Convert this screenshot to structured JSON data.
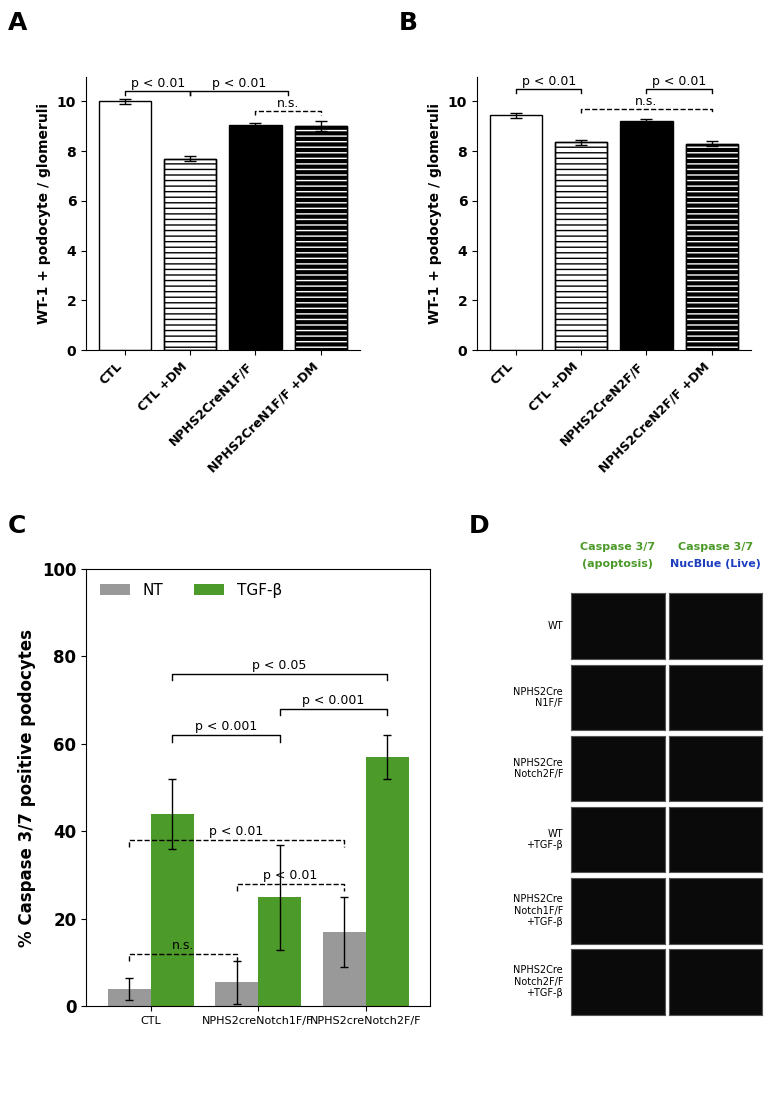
{
  "chart_data": [
    {
      "type": "bar",
      "title": "A",
      "categories": [
        "CTL",
        "CTL +DM",
        "NPHS2CreN1F/F",
        "NPHS2CreN1F/F +DM"
      ],
      "values": [
        10.0,
        7.7,
        9.05,
        9.0
      ],
      "errors": [
        0.1,
        0.1,
        0.1,
        0.2
      ],
      "colors": [
        "#ffffff",
        "#ffffff",
        "#000000",
        "#000000"
      ],
      "y_label": "WT-1 + podocyte / glomeruli",
      "ylim": [
        0,
        11
      ],
      "yticks": [
        0,
        2,
        4,
        6,
        8,
        10
      ],
      "annotations": [
        {
          "text": "p < 0.01",
          "from": 0,
          "to": 1,
          "y": 10.4,
          "line_style": "solid"
        },
        {
          "text": "p < 0.01",
          "from": 1,
          "to": 2.5,
          "y": 10.4,
          "line_style": "solid"
        },
        {
          "text": "n.s.",
          "from": 2,
          "to": 3,
          "y": 9.6,
          "line_style": "dashed"
        }
      ]
    },
    {
      "type": "bar",
      "title": "B",
      "categories": [
        "CTL",
        "CTL +DM",
        "NPHS2CreN2F/F",
        "NPHS2CreN2F/F +DM"
      ],
      "values": [
        9.45,
        8.35,
        9.2,
        8.3
      ],
      "errors": [
        0.1,
        0.1,
        0.1,
        0.1
      ],
      "colors": [
        "#ffffff",
        "#ffffff",
        "#000000",
        "#000000"
      ],
      "y_label": "WT-1 + podocyte / glomeruli",
      "ylim": [
        0,
        11
      ],
      "yticks": [
        0,
        2,
        4,
        6,
        8,
        10
      ],
      "annotations": [
        {
          "text": "p < 0.01",
          "from": 0,
          "to": 1,
          "y": 10.5,
          "line_style": "solid"
        },
        {
          "text": "p < 0.01",
          "from": 2,
          "to": 3,
          "y": 10.5,
          "line_style": "solid"
        },
        {
          "text": "n.s.",
          "from": 1,
          "to": 3,
          "y": 9.7,
          "line_style": "dashed"
        }
      ]
    },
    {
      "type": "grouped_bar",
      "title": "C",
      "categories": [
        "CTL",
        "NPHS2creNotch1F/F",
        "NPHS2creNotch2F/F"
      ],
      "series": [
        {
          "name": "NT",
          "color": "#999999",
          "values": [
            4,
            5.5,
            17
          ],
          "errors": [
            2.5,
            5,
            8
          ]
        },
        {
          "name": "TGF-β",
          "color": "#4c9a2a",
          "values": [
            44,
            25,
            57
          ],
          "errors": [
            8,
            12,
            5
          ]
        }
      ],
      "y_label": "% Caspase 3/7 positive podocytes",
      "ylim": [
        0,
        100
      ],
      "yticks": [
        0,
        20,
        40,
        60,
        80,
        100
      ],
      "legend": "upper left",
      "annotations": [
        {
          "text": "p < 0.05",
          "from": [
            0,
            1
          ],
          "to": [
            2,
            1
          ],
          "y": 76,
          "line_style": "solid"
        },
        {
          "text": "p < 0.001",
          "from": [
            0,
            1
          ],
          "to": [
            1,
            1
          ],
          "y": 62,
          "line_style": "solid"
        },
        {
          "text": "p < 0.001",
          "from": [
            1,
            1
          ],
          "to": [
            2,
            1
          ],
          "y": 68,
          "line_style": "solid"
        },
        {
          "text": "p < 0.01",
          "from": [
            0,
            0
          ],
          "to": [
            2,
            0
          ],
          "y": 38,
          "line_style": "dashed"
        },
        {
          "text": "p < 0.01",
          "from": [
            1,
            0
          ],
          "to": [
            2,
            0
          ],
          "y": 28,
          "line_style": "dashed"
        },
        {
          "text": "n.s.",
          "from": [
            0,
            0
          ],
          "to": [
            1,
            0
          ],
          "y": 12,
          "line_style": "dashed"
        }
      ]
    },
    {
      "type": "image_grid",
      "title": "D",
      "columns": [
        [
          {
            "text": "Caspase 3/7",
            "color": "#4c9a2a"
          },
          {
            "text": "(apoptosis)",
            "color": "#4c9a2a"
          }
        ],
        [
          {
            "text": "Caspase 3/7",
            "color": "#4c9a2a"
          },
          {
            "text": "NucBlue (Live)",
            "color": "#1f3fbf"
          }
        ]
      ],
      "rows": [
        "WT",
        "NPHS2Cre\nN1F/F",
        "NPHS2Cre\nNotch2F/F",
        "WT\n+TGF-β",
        "NPHS2Cre\nNotch1F/F\n+TGF-β",
        "NPHS2Cre\nNotch2F/F\n+TGF-β"
      ]
    }
  ]
}
